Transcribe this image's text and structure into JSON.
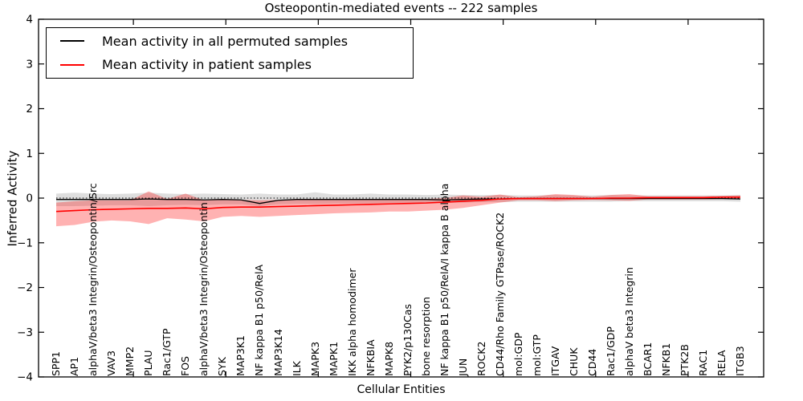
{
  "title": "Osteopontin-mediated events -- 222 samples",
  "legend": {
    "items": [
      {
        "label": "Mean activity in all permuted samples",
        "color": "#000000"
      },
      {
        "label": "Mean activity in patient samples",
        "color": "#ff0000"
      }
    ]
  },
  "chart_data": {
    "type": "line",
    "title": "Osteopontin-mediated events -- 222 samples",
    "xlabel": "Cellular Entities",
    "ylabel": "Inferred Activity",
    "ylim": [
      -4,
      4
    ],
    "yticks": [
      4,
      3,
      2,
      1,
      0,
      -1,
      -2,
      -3,
      -4
    ],
    "xtick_indices": [
      4,
      9,
      14,
      19,
      24,
      29,
      34
    ],
    "grid": false,
    "legend_position": "upper left",
    "zero_line": {
      "y": 0,
      "style": "dotted",
      "color": "#000000"
    },
    "categories": [
      "SPP1",
      "AP1",
      "alphaV/beta3 Integrin/Osteopontin/Src",
      "VAV3",
      "MMP2",
      "PLAU",
      "Rac1/GTP",
      "FOS",
      "alphaV/beta3 Integrin/Osteopontin",
      "SYK",
      "MAP3K1",
      "NF kappa B1 p50/RelA",
      "MAP3K14",
      "ILK",
      "MAPK3",
      "MAPK1",
      "IKK alpha homodimer",
      "NFKBIA",
      "MAPK8",
      "PYK2/p130Cas",
      "bone resorption",
      "NF kappa B1 p50/RelA/I kappa B alpha",
      "JUN",
      "ROCK2",
      "CD44/Rho Family GTPase/ROCK2",
      "mol:GDP",
      "mol:GTP",
      "ITGAV",
      "CHUK",
      "CD44",
      "Rac1/GDP",
      "alphaV beta3 Integrin",
      "BCAR1",
      "NFKB1",
      "PTK2B",
      "RAC1",
      "RELA",
      "ITGB3"
    ],
    "series": [
      {
        "name": "Mean activity in all permuted samples",
        "color": "#000000",
        "width": 1.3,
        "values": [
          -0.03,
          -0.03,
          -0.03,
          -0.03,
          -0.03,
          -0.02,
          -0.03,
          -0.03,
          -0.04,
          -0.03,
          -0.04,
          -0.12,
          -0.05,
          -0.03,
          -0.03,
          -0.03,
          -0.03,
          -0.03,
          -0.03,
          -0.03,
          -0.03,
          -0.04,
          -0.03,
          -0.02,
          -0.02,
          -0.01,
          -0.01,
          -0.01,
          -0.01,
          -0.01,
          -0.01,
          -0.01,
          -0.01,
          -0.01,
          -0.01,
          -0.01,
          -0.01,
          -0.02
        ]
      },
      {
        "name": "Mean activity in patient samples",
        "color": "#ff0000",
        "width": 1.6,
        "values": [
          -0.3,
          -0.28,
          -0.26,
          -0.25,
          -0.24,
          -0.23,
          -0.23,
          -0.22,
          -0.24,
          -0.21,
          -0.2,
          -0.2,
          -0.19,
          -0.18,
          -0.17,
          -0.16,
          -0.15,
          -0.14,
          -0.13,
          -0.12,
          -0.11,
          -0.09,
          -0.07,
          -0.05,
          -0.02,
          -0.01,
          -0.01,
          -0.01,
          -0.01,
          -0.01,
          0.0,
          0.0,
          0.01,
          0.01,
          0.01,
          0.01,
          0.02,
          0.02
        ]
      }
    ],
    "bands": [
      {
        "name": "permuted-samples-range",
        "color": "#000000",
        "opacity": 0.13,
        "upper": [
          0.1,
          0.12,
          0.1,
          0.09,
          0.1,
          0.12,
          0.1,
          0.09,
          0.1,
          0.09,
          0.08,
          0.1,
          0.08,
          0.08,
          0.13,
          0.08,
          0.08,
          0.1,
          0.08,
          0.08,
          0.07,
          0.08,
          0.07,
          0.07,
          0.07,
          0.06,
          0.06,
          0.07,
          0.06,
          0.06,
          0.07,
          0.06,
          0.06,
          0.06,
          0.06,
          0.06,
          0.06,
          0.07
        ],
        "lower": [
          -0.18,
          -0.18,
          -0.17,
          -0.16,
          -0.16,
          -0.18,
          -0.16,
          -0.15,
          -0.16,
          -0.14,
          -0.14,
          -0.18,
          -0.14,
          -0.13,
          -0.13,
          -0.12,
          -0.12,
          -0.12,
          -0.11,
          -0.11,
          -0.1,
          -0.11,
          -0.1,
          -0.09,
          -0.09,
          -0.08,
          -0.08,
          -0.08,
          -0.08,
          -0.08,
          -0.08,
          -0.07,
          -0.07,
          -0.07,
          -0.07,
          -0.07,
          -0.07,
          -0.08
        ]
      },
      {
        "name": "patient-samples-range",
        "color": "#ff0000",
        "opacity": 0.3,
        "upper": [
          -0.1,
          -0.07,
          -0.05,
          -0.05,
          -0.05,
          0.15,
          -0.02,
          0.1,
          -0.05,
          -0.04,
          -0.04,
          -0.05,
          -0.04,
          -0.04,
          -0.03,
          -0.04,
          -0.03,
          -0.03,
          -0.02,
          -0.02,
          -0.02,
          0.0,
          0.06,
          0.03,
          0.08,
          0.02,
          0.04,
          0.09,
          0.07,
          0.03,
          0.07,
          0.09,
          0.04,
          0.04,
          0.04,
          0.04,
          0.05,
          0.06
        ],
        "lower": [
          -0.63,
          -0.6,
          -0.53,
          -0.5,
          -0.52,
          -0.58,
          -0.45,
          -0.48,
          -0.52,
          -0.42,
          -0.4,
          -0.42,
          -0.4,
          -0.38,
          -0.36,
          -0.34,
          -0.33,
          -0.32,
          -0.3,
          -0.3,
          -0.28,
          -0.26,
          -0.22,
          -0.16,
          -0.1,
          -0.05,
          -0.05,
          -0.07,
          -0.05,
          -0.04,
          -0.05,
          -0.06,
          -0.03,
          -0.03,
          -0.03,
          -0.03,
          -0.02,
          -0.02
        ]
      }
    ]
  }
}
